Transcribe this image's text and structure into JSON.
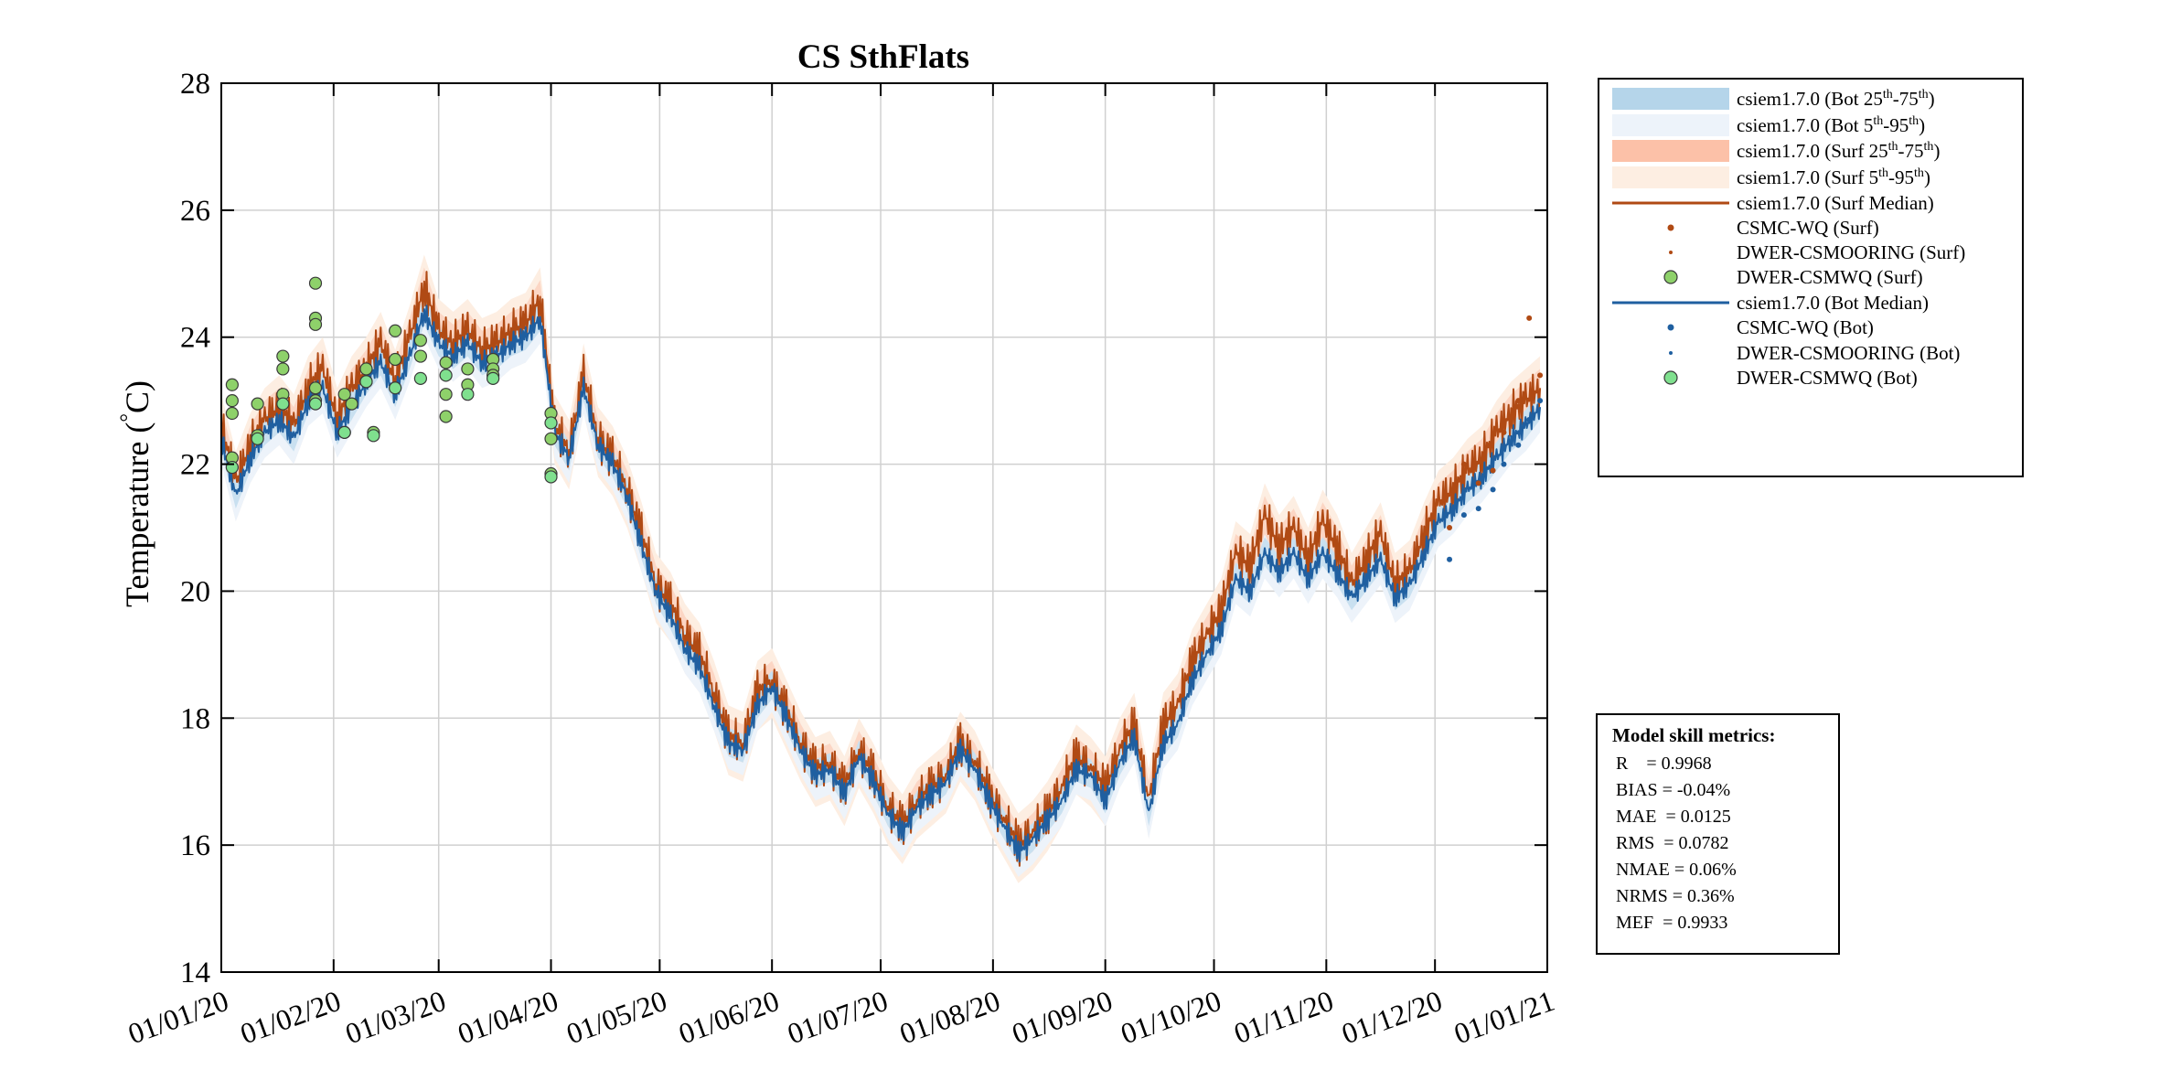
{
  "chart_data": {
    "type": "line",
    "title": "CS SthFlats",
    "ylabel": "Temperature (°C)",
    "ylabel_prefix": "Temperature (",
    "ylabel_deg": "°",
    "ylabel_unit_suffix": "C)",
    "ylim": [
      14,
      28
    ],
    "yticks": [
      14,
      16,
      18,
      20,
      22,
      24,
      26,
      28
    ],
    "xlim": [
      "01/01/20",
      "01/01/21"
    ],
    "xticks": [
      "01/01/20",
      "01/02/20",
      "01/03/20",
      "01/04/20",
      "01/05/20",
      "01/06/20",
      "01/07/20",
      "01/08/20",
      "01/09/20",
      "01/10/20",
      "01/11/20",
      "01/12/20",
      "01/01/21"
    ],
    "grid": true,
    "legend_position": "outside-right",
    "series": [
      {
        "name": "csiem1.7.0 (Surf Median)",
        "color": "#b04a14",
        "x": [
          "01/01/20",
          "05/01/20",
          "09/01/20",
          "13/01/20",
          "17/01/20",
          "21/01/20",
          "25/01/20",
          "29/01/20",
          "02/02/20",
          "06/02/20",
          "10/02/20",
          "14/02/20",
          "18/02/20",
          "22/02/20",
          "26/02/20",
          "01/03/20",
          "05/03/20",
          "09/03/20",
          "13/03/20",
          "17/03/20",
          "21/03/20",
          "25/03/20",
          "29/03/20",
          "02/04/20",
          "06/04/20",
          "10/04/20",
          "14/04/20",
          "18/04/20",
          "22/04/20",
          "26/04/20",
          "30/04/20",
          "04/05/20",
          "08/05/20",
          "12/05/20",
          "16/05/20",
          "20/05/20",
          "24/05/20",
          "28/05/20",
          "01/06/20",
          "05/06/20",
          "09/06/20",
          "13/06/20",
          "17/06/20",
          "21/06/20",
          "25/06/20",
          "29/06/20",
          "03/07/20",
          "07/07/20",
          "11/07/20",
          "15/07/20",
          "19/07/20",
          "23/07/20",
          "27/07/20",
          "31/07/20",
          "04/08/20",
          "08/08/20",
          "12/08/20",
          "16/08/20",
          "20/08/20",
          "24/08/20",
          "28/08/20",
          "01/09/20",
          "05/09/20",
          "09/09/20",
          "13/09/20",
          "17/09/20",
          "21/09/20",
          "25/09/20",
          "29/09/20",
          "03/10/20",
          "07/10/20",
          "11/10/20",
          "15/10/20",
          "19/10/20",
          "23/10/20",
          "27/10/20",
          "31/10/20",
          "04/11/20",
          "08/11/20",
          "12/11/20",
          "16/11/20",
          "20/11/20",
          "24/11/20",
          "28/11/20",
          "02/12/20",
          "06/12/20",
          "10/12/20",
          "14/12/20",
          "18/12/20",
          "22/12/20",
          "26/12/20",
          "30/12/20"
        ],
        "y": [
          22.6,
          21.7,
          22.3,
          22.7,
          22.9,
          22.6,
          23.2,
          23.5,
          22.7,
          23.2,
          23.5,
          23.9,
          23.3,
          24.0,
          24.8,
          24.1,
          23.9,
          24.1,
          23.8,
          23.9,
          24.1,
          24.2,
          24.6,
          22.6,
          22.2,
          23.4,
          22.4,
          22.1,
          21.6,
          20.9,
          20.1,
          19.8,
          19.3,
          19.0,
          18.4,
          17.7,
          17.6,
          18.4,
          18.6,
          18.1,
          17.6,
          17.2,
          17.3,
          16.9,
          17.5,
          17.1,
          16.6,
          16.3,
          16.7,
          16.9,
          17.1,
          17.6,
          17.3,
          16.8,
          16.4,
          16.0,
          16.2,
          16.5,
          16.9,
          17.4,
          17.2,
          16.9,
          17.5,
          17.9,
          16.7,
          17.9,
          18.2,
          18.9,
          19.3,
          19.7,
          20.6,
          20.4,
          21.2,
          20.7,
          21.0,
          20.5,
          21.1,
          20.7,
          20.1,
          20.5,
          20.9,
          20.1,
          20.3,
          20.9,
          21.4,
          21.6,
          21.9,
          22.1,
          22.5,
          22.8,
          23.0,
          23.2
        ]
      },
      {
        "name": "csiem1.7.0 (Bot Median)",
        "color": "#1f5fa0",
        "x": [
          "01/01/20",
          "05/01/20",
          "09/01/20",
          "13/01/20",
          "17/01/20",
          "21/01/20",
          "25/01/20",
          "29/01/20",
          "02/02/20",
          "06/02/20",
          "10/02/20",
          "14/02/20",
          "18/02/20",
          "22/02/20",
          "26/02/20",
          "01/03/20",
          "05/03/20",
          "09/03/20",
          "13/03/20",
          "17/03/20",
          "21/03/20",
          "25/03/20",
          "29/03/20",
          "02/04/20",
          "06/04/20",
          "10/04/20",
          "14/04/20",
          "18/04/20",
          "22/04/20",
          "26/04/20",
          "30/04/20",
          "04/05/20",
          "08/05/20",
          "12/05/20",
          "16/05/20",
          "20/05/20",
          "24/05/20",
          "28/05/20",
          "01/06/20",
          "05/06/20",
          "09/06/20",
          "13/06/20",
          "17/06/20",
          "21/06/20",
          "25/06/20",
          "29/06/20",
          "03/07/20",
          "07/07/20",
          "11/07/20",
          "15/07/20",
          "19/07/20",
          "23/07/20",
          "27/07/20",
          "31/07/20",
          "04/08/20",
          "08/08/20",
          "12/08/20",
          "16/08/20",
          "20/08/20",
          "24/08/20",
          "28/08/20",
          "01/09/20",
          "05/09/20",
          "09/09/20",
          "13/09/20",
          "17/09/20",
          "21/09/20",
          "25/09/20",
          "29/09/20",
          "03/10/20",
          "07/10/20",
          "11/10/20",
          "15/10/20",
          "19/10/20",
          "23/10/20",
          "27/10/20",
          "31/10/20",
          "04/11/20",
          "08/11/20",
          "12/11/20",
          "16/11/20",
          "20/11/20",
          "24/11/20",
          "28/11/20",
          "02/12/20",
          "06/12/20",
          "10/12/20",
          "14/12/20",
          "18/12/20",
          "22/12/20",
          "26/12/20",
          "30/12/20"
        ],
        "y": [
          22.4,
          21.5,
          22.1,
          22.5,
          22.7,
          22.4,
          23.0,
          23.2,
          22.5,
          22.9,
          23.3,
          23.6,
          23.1,
          23.7,
          24.4,
          23.9,
          23.7,
          23.9,
          23.6,
          23.7,
          23.9,
          24.0,
          24.3,
          22.5,
          22.1,
          23.2,
          22.3,
          22.0,
          21.5,
          20.7,
          20.0,
          19.6,
          19.1,
          18.8,
          18.2,
          17.6,
          17.5,
          18.2,
          18.5,
          18.0,
          17.5,
          17.1,
          17.2,
          16.8,
          17.4,
          17.0,
          16.5,
          16.2,
          16.6,
          16.8,
          17.0,
          17.5,
          17.2,
          16.7,
          16.3,
          15.9,
          16.1,
          16.4,
          16.7,
          17.2,
          17.1,
          16.7,
          17.3,
          17.7,
          16.5,
          17.6,
          17.9,
          18.6,
          19.0,
          19.4,
          20.2,
          20.0,
          20.6,
          20.3,
          20.6,
          20.2,
          20.6,
          20.3,
          19.9,
          20.2,
          20.5,
          19.9,
          20.1,
          20.6,
          21.1,
          21.3,
          21.6,
          21.8,
          22.1,
          22.4,
          22.6,
          22.9
        ]
      },
      {
        "name": "DWER-CSMWQ (Surf)",
        "type": "scatter",
        "color": "#8ed16a",
        "x": [
          "04/01/20",
          "04/01/20",
          "04/01/20",
          "04/01/20",
          "11/01/20",
          "11/01/20",
          "18/01/20",
          "18/01/20",
          "18/01/20",
          "27/01/20",
          "27/01/20",
          "27/01/20",
          "27/01/20",
          "27/01/20",
          "04/02/20",
          "04/02/20",
          "06/02/20",
          "10/02/20",
          "10/02/20",
          "12/02/20",
          "18/02/20",
          "18/02/20",
          "25/02/20",
          "25/02/20",
          "03/03/20",
          "03/03/20",
          "03/03/20",
          "09/03/20",
          "09/03/20",
          "16/03/20",
          "16/03/20",
          "16/03/20",
          "01/04/20",
          "01/04/20",
          "01/04/20"
        ],
        "y": [
          23.25,
          23.0,
          22.8,
          22.1,
          22.95,
          22.45,
          23.7,
          23.5,
          23.1,
          24.85,
          24.3,
          24.2,
          23.2,
          23.0,
          23.1,
          22.5,
          22.95,
          23.5,
          23.3,
          22.5,
          24.1,
          23.65,
          23.95,
          23.7,
          23.6,
          23.1,
          22.75,
          23.5,
          23.25,
          23.65,
          23.5,
          23.4,
          22.8,
          22.4,
          21.85
        ]
      },
      {
        "name": "DWER-CSMWQ (Bot)",
        "type": "scatter",
        "color": "#7fe08e",
        "x": [
          "04/01/20",
          "11/01/20",
          "18/01/20",
          "27/01/20",
          "04/02/20",
          "10/02/20",
          "12/02/20",
          "18/02/20",
          "25/02/20",
          "03/03/20",
          "09/03/20",
          "16/03/20",
          "01/04/20",
          "01/04/20"
        ],
        "y": [
          21.95,
          22.4,
          22.95,
          22.95,
          22.5,
          23.3,
          22.45,
          23.2,
          23.35,
          23.4,
          23.1,
          23.35,
          22.65,
          21.8
        ]
      },
      {
        "name": "DWER-CSMOORING (Surf)",
        "type": "scatter",
        "color": "#b04a14",
        "x": [
          "05/12/20",
          "09/12/20",
          "13/12/20",
          "17/12/20",
          "20/12/20",
          "24/12/20",
          "27/12/20",
          "30/12/20"
        ],
        "y": [
          21.0,
          22.0,
          21.7,
          21.9,
          22.5,
          23.0,
          24.3,
          23.4
        ]
      },
      {
        "name": "DWER-CSMOORING (Bot)",
        "type": "scatter",
        "color": "#1f5fa0",
        "x": [
          "05/12/20",
          "09/12/20",
          "13/12/20",
          "17/12/20",
          "20/12/20",
          "24/12/20",
          "27/12/20",
          "30/12/20"
        ],
        "y": [
          20.5,
          21.2,
          21.3,
          21.6,
          22.0,
          22.3,
          22.7,
          23.0
        ]
      }
    ],
    "legend": [
      {
        "sym": "patch",
        "color": "#b5d5ea",
        "pre": "csiem1.7.0 (Bot 25",
        "sup1": "th",
        "mid": "-75",
        "sup2": "th",
        "post": ")"
      },
      {
        "sym": "patch",
        "color": "#edf3fa",
        "pre": "csiem1.7.0 (Bot 5",
        "sup1": "th",
        "mid": "-95",
        "sup2": "th",
        "post": ")"
      },
      {
        "sym": "patch",
        "color": "#fcc1a8",
        "pre": "csiem1.7.0 (Surf 25",
        "sup1": "th",
        "mid": "-75",
        "sup2": "th",
        "post": ")"
      },
      {
        "sym": "patch",
        "color": "#fdeee2",
        "pre": "csiem1.7.0 (Surf 5",
        "sup1": "th",
        "mid": "-95",
        "sup2": "th",
        "post": ")"
      },
      {
        "sym": "line",
        "color": "#b04a14",
        "label": "csiem1.7.0 (Surf Median)"
      },
      {
        "sym": "dot",
        "color": "#b04a14",
        "label": "CSMC-WQ (Surf)"
      },
      {
        "sym": "smalldot",
        "color": "#b04a14",
        "label": "DWER-CSMOORING (Surf)"
      },
      {
        "sym": "circle",
        "color": "#8ed16a",
        "label": "DWER-CSMWQ (Surf)"
      },
      {
        "sym": "line",
        "color": "#1f5fa0",
        "label": "csiem1.7.0 (Bot Median)"
      },
      {
        "sym": "dot",
        "color": "#1f5fa0",
        "label": "CSMC-WQ (Bot)"
      },
      {
        "sym": "smalldot",
        "color": "#1f5fa0",
        "label": "DWER-CSMOORING (Bot)"
      },
      {
        "sym": "circle",
        "color": "#7fe08e",
        "label": "DWER-CSMWQ (Bot)"
      }
    ]
  },
  "metrics": {
    "title": "Model skill metrics:",
    "lines": [
      "R    = 0.9968",
      "BIAS = -0.04%",
      "MAE  = 0.0125",
      "RMS  = 0.0782",
      "NMAE = 0.06%",
      "NRMS = 0.36%",
      "MEF  = 0.9933"
    ]
  }
}
